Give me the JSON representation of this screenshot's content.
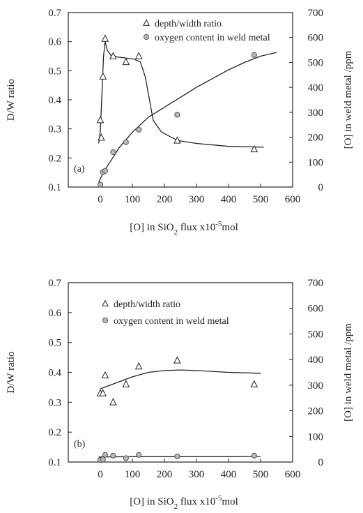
{
  "colors": {
    "ink": "#222222",
    "marker_fill": "#b8b8b8"
  },
  "chart_data": [
    {
      "type": "scatter",
      "panel_label": "(a)",
      "xlabel": "[O] in SiO",
      "xlabel_sub": "2",
      "xlabel_rest": " flux  x10",
      "xlabel_sup": "-5",
      "xlabel_unit": "mol",
      "ylabel_left": "D/W ratio",
      "ylabel_right": "[O] in weld metal  /ppm",
      "xlim": [
        -100,
        600
      ],
      "ylim_left": [
        0.1,
        0.7
      ],
      "ylim_right": [
        0,
        700
      ],
      "x_ticks": [
        "0",
        "100",
        "200",
        "300",
        "400",
        "500",
        "600"
      ],
      "y_left_ticks": [
        "0.1",
        "0.2",
        "0.3",
        "0.4",
        "0.5",
        "0.6",
        "0.7"
      ],
      "y_right_ticks": [
        "0",
        "100",
        "200",
        "300",
        "400",
        "500",
        "600",
        "700"
      ],
      "legend": [
        "depth/width ratio",
        "oxygen content in weld metal"
      ],
      "series": [
        {
          "name": "depth/width ratio",
          "axis": "left",
          "marker": "triangle",
          "points": [
            [
              0,
              0.33
            ],
            [
              3,
              0.27
            ],
            [
              8,
              0.48
            ],
            [
              15,
              0.61
            ],
            [
              40,
              0.55
            ],
            [
              80,
              0.53
            ],
            [
              120,
              0.55
            ],
            [
              240,
              0.26
            ],
            [
              480,
              0.23
            ]
          ]
        },
        {
          "name": "oxygen content in weld metal",
          "axis": "right",
          "marker": "circle",
          "points": [
            [
              0,
              10
            ],
            [
              8,
              60
            ],
            [
              15,
              65
            ],
            [
              40,
              140
            ],
            [
              80,
              180
            ],
            [
              120,
              230
            ],
            [
              240,
              290
            ],
            [
              480,
              530
            ]
          ]
        }
      ],
      "curves": [
        {
          "axis": "left",
          "points": [
            [
              -5,
              0.25
            ],
            [
              0,
              0.29
            ],
            [
              5,
              0.42
            ],
            [
              10,
              0.55
            ],
            [
              15,
              0.6
            ],
            [
              22,
              0.57
            ],
            [
              35,
              0.55
            ],
            [
              70,
              0.545
            ],
            [
              105,
              0.54
            ],
            [
              125,
              0.53
            ],
            [
              140,
              0.48
            ],
            [
              150,
              0.42
            ],
            [
              165,
              0.33
            ],
            [
              190,
              0.29
            ],
            [
              240,
              0.26
            ],
            [
              300,
              0.25
            ],
            [
              400,
              0.24
            ],
            [
              510,
              0.237
            ]
          ]
        },
        {
          "axis": "right",
          "points": [
            [
              -5,
              20
            ],
            [
              10,
              60
            ],
            [
              30,
              100
            ],
            [
              60,
              160
            ],
            [
              100,
              220
            ],
            [
              150,
              280
            ],
            [
              200,
              320
            ],
            [
              250,
              360
            ],
            [
              300,
              400
            ],
            [
              350,
              435
            ],
            [
              400,
              470
            ],
            [
              450,
              500
            ],
            [
              500,
              525
            ],
            [
              550,
              540
            ]
          ]
        }
      ]
    },
    {
      "type": "scatter",
      "panel_label": "(b)",
      "xlabel": "[O] in SiO",
      "xlabel_sub": "2",
      "xlabel_rest": " flux  x10",
      "xlabel_sup": "-5",
      "xlabel_unit": "mol",
      "ylabel_left": "D/W ratio",
      "ylabel_right": "[O] in weld metal  /ppm",
      "xlim": [
        -100,
        600
      ],
      "ylim_left": [
        0.1,
        0.7
      ],
      "ylim_right": [
        0,
        700
      ],
      "x_ticks": [
        "0",
        "100",
        "200",
        "300",
        "400",
        "500",
        "600"
      ],
      "y_left_ticks": [
        "0.1",
        "0.2",
        "0.3",
        "0.4",
        "0.5",
        "0.6",
        "0.7"
      ],
      "y_right_ticks": [
        "0",
        "100",
        "200",
        "300",
        "400",
        "500",
        "600",
        "700"
      ],
      "legend": [
        "depth/width ratio",
        "oxygen content in weld metal"
      ],
      "series": [
        {
          "name": "depth/width ratio",
          "axis": "left",
          "marker": "triangle",
          "points": [
            [
              0,
              0.33
            ],
            [
              8,
              0.33
            ],
            [
              15,
              0.39
            ],
            [
              40,
              0.3
            ],
            [
              80,
              0.36
            ],
            [
              120,
              0.42
            ],
            [
              240,
              0.44
            ],
            [
              480,
              0.36
            ]
          ]
        },
        {
          "name": "oxygen content in weld metal",
          "axis": "right",
          "marker": "circle",
          "points": [
            [
              0,
              8
            ],
            [
              8,
              10
            ],
            [
              15,
              28
            ],
            [
              40,
              25
            ],
            [
              80,
              15
            ],
            [
              120,
              28
            ],
            [
              240,
              22
            ],
            [
              480,
              25
            ]
          ]
        }
      ],
      "curves": [
        {
          "axis": "left",
          "points": [
            [
              0,
              0.345
            ],
            [
              50,
              0.365
            ],
            [
              100,
              0.385
            ],
            [
              150,
              0.4
            ],
            [
              200,
              0.406
            ],
            [
              250,
              0.408
            ],
            [
              300,
              0.406
            ],
            [
              400,
              0.4
            ],
            [
              500,
              0.397
            ]
          ]
        },
        {
          "axis": "right",
          "points": [
            [
              -5,
              20
            ],
            [
              100,
              21
            ],
            [
              200,
              21
            ],
            [
              300,
              21
            ],
            [
              400,
              21
            ],
            [
              500,
              22
            ]
          ]
        }
      ]
    }
  ]
}
